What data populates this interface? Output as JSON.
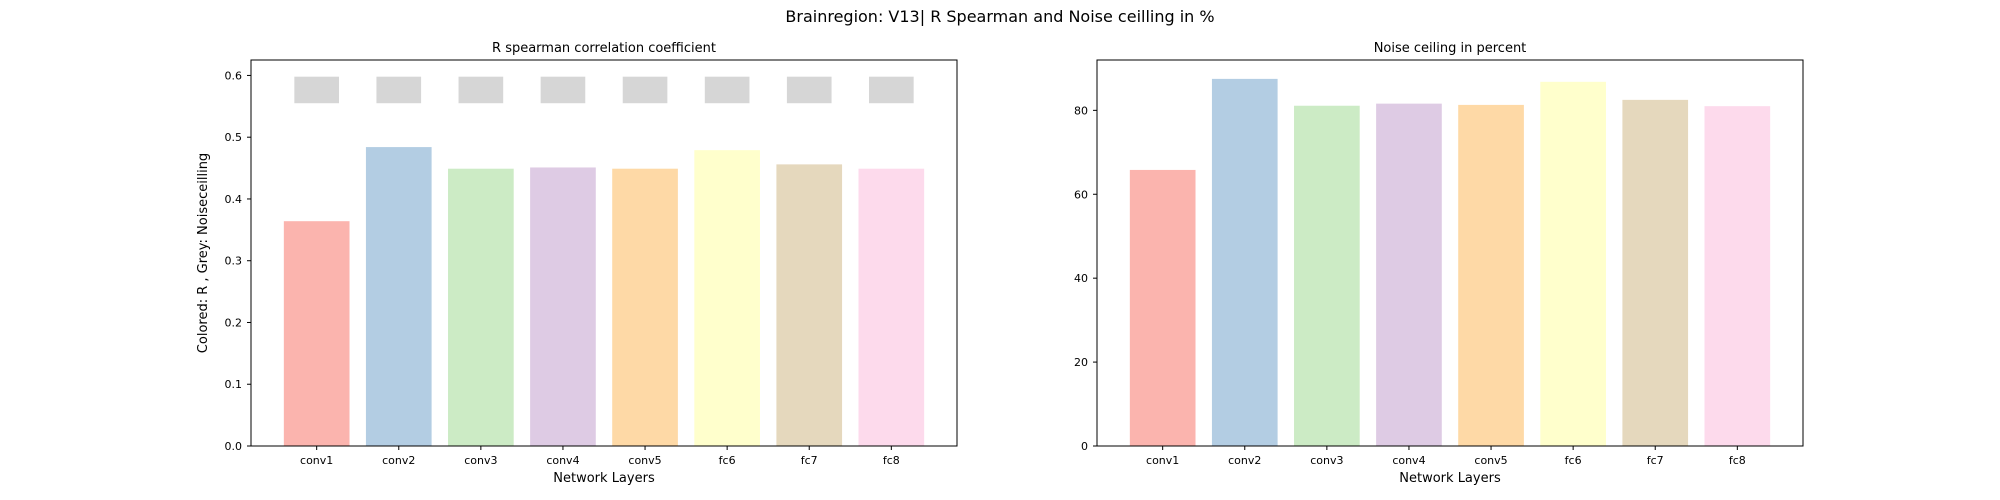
{
  "suptitle": "Brainregion: V13| R Spearman and Noise ceilling in %",
  "chart_data": [
    {
      "type": "bar",
      "title": "R spearman correlation coefficient",
      "xlabel": "Network Layers",
      "ylabel": "Colored: R , Grey: Noiseceilling",
      "categories": [
        "conv1",
        "conv2",
        "conv3",
        "conv4",
        "conv5",
        "fc6",
        "fc7",
        "fc8"
      ],
      "ylim": [
        0,
        0.625
      ],
      "yticks": [
        0.0,
        0.1,
        0.2,
        0.3,
        0.4,
        0.5,
        0.6
      ],
      "ytick_labels": [
        "0.0",
        "0.1",
        "0.2",
        "0.3",
        "0.4",
        "0.5",
        "0.6"
      ],
      "series": [
        {
          "values": [
            0.364,
            0.484,
            0.449,
            0.451,
            0.449,
            0.479,
            0.456,
            0.449
          ]
        }
      ],
      "noise_ceiling": {
        "lower": 0.555,
        "upper": 0.598,
        "color": "#d6d6d6"
      },
      "grid": false
    },
    {
      "type": "bar",
      "title": "Noise ceiling in percent",
      "xlabel": "Network Layers",
      "ylabel": "",
      "categories": [
        "conv1",
        "conv2",
        "conv3",
        "conv4",
        "conv5",
        "fc6",
        "fc7",
        "fc8"
      ],
      "ylim": [
        0,
        92
      ],
      "yticks": [
        0,
        20,
        40,
        60,
        80
      ],
      "ytick_labels": [
        "0",
        "20",
        "40",
        "60",
        "80"
      ],
      "series": [
        {
          "values": [
            65.8,
            87.5,
            81.1,
            81.6,
            81.3,
            86.8,
            82.5,
            81.0
          ]
        }
      ],
      "grid": false
    }
  ],
  "colors": [
    "#fbb4ae",
    "#b3cde3",
    "#ccebc5",
    "#decbe4",
    "#fed9a6",
    "#ffffcc",
    "#e5d8bd",
    "#fddaec"
  ]
}
